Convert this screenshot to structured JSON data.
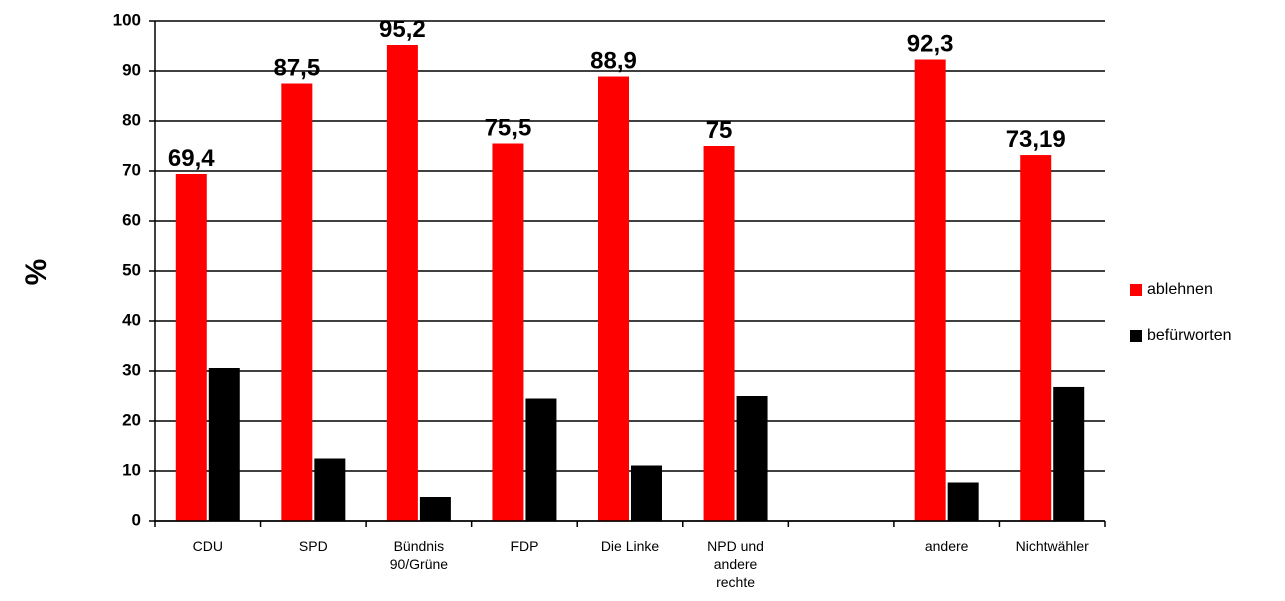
{
  "chart_data": {
    "type": "bar",
    "ylabel": "%",
    "ylim": [
      0,
      100
    ],
    "yticks": [
      0,
      10,
      20,
      30,
      40,
      50,
      60,
      70,
      80,
      90,
      100
    ],
    "grid": true,
    "legend_position": "right",
    "categories": [
      [
        "CDU"
      ],
      [
        "SPD"
      ],
      [
        "Bündnis",
        "90/Grüne"
      ],
      [
        "FDP"
      ],
      [
        "Die Linke"
      ],
      [
        "NPD und",
        "andere",
        "rechte"
      ],
      [],
      [
        "andere"
      ],
      [
        "Nichtwähler"
      ]
    ],
    "series": [
      {
        "name": "ablehnen",
        "color": "#ff0000",
        "values": [
          69.4,
          87.5,
          95.2,
          75.5,
          88.9,
          75,
          null,
          92.3,
          73.19
        ],
        "labels": [
          "69,4",
          "87,5",
          "95,2",
          "75,5",
          "88,9",
          "75",
          "",
          "92,3",
          "73,19"
        ]
      },
      {
        "name": "befürworten",
        "color": "#000000",
        "values": [
          30.6,
          12.5,
          4.8,
          24.5,
          11.1,
          25,
          null,
          7.7,
          26.81
        ]
      }
    ]
  }
}
